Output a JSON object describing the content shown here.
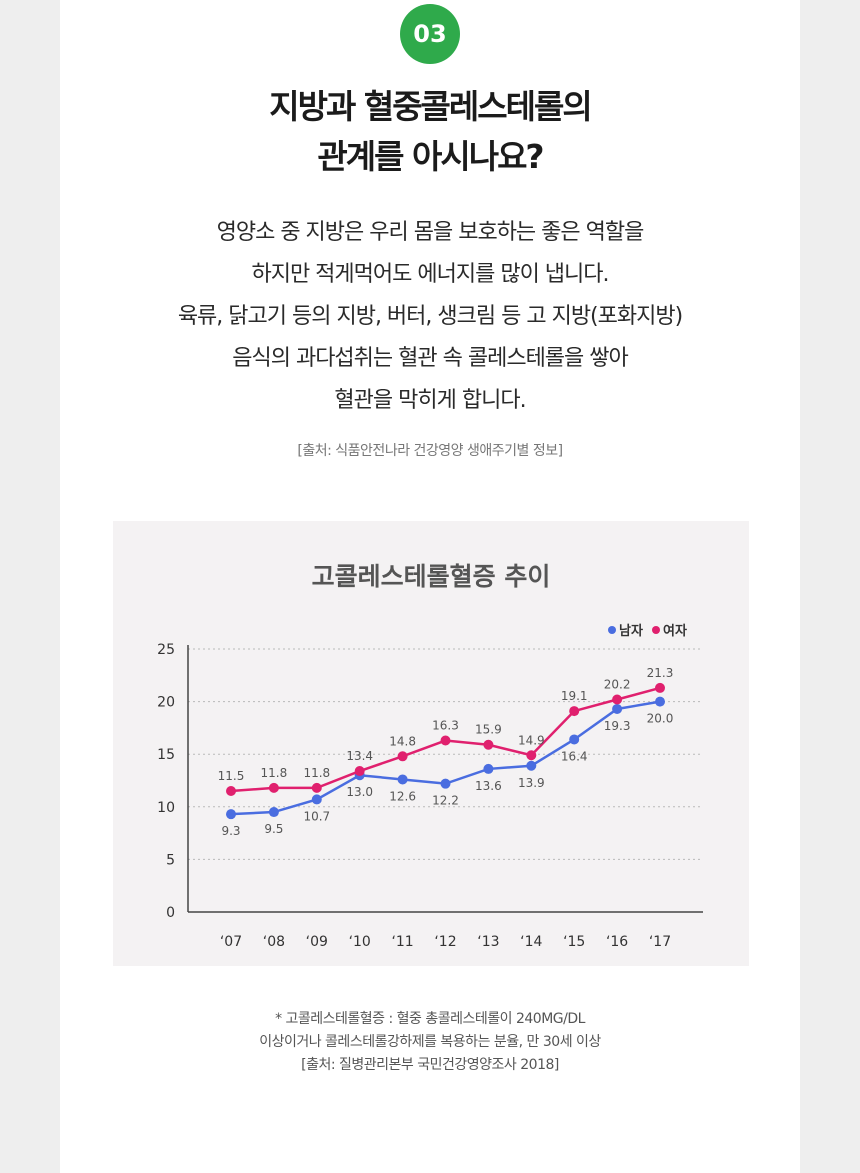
{
  "badge": "03",
  "headline": [
    "지방과 혈중콜레스테롤의",
    "관계를 아시나요?"
  ],
  "body_lines": [
    "영양소 중 지방은 우리 몸을 보호하는 좋은 역할을",
    "하지만 적게먹어도 에너지를 많이 냅니다.",
    "육류, 닭고기 등의 지방, 버터, 생크림 등 고 지방(포화지방)",
    "음식의 과다섭취는 혈관 속 콜레스테롤을 쌓아",
    "혈관을 막히게 합니다."
  ],
  "source_top": "[출처: 식품안전나라 건강영양 생애주기별 정보]",
  "chart_data": {
    "type": "line",
    "title": "고콜레스테롤혈증 추이",
    "categories": [
      "‘07",
      "‘08",
      "‘09",
      "‘10",
      "‘11",
      "‘12",
      "‘13",
      "‘14",
      "‘15",
      "‘16",
      "‘17"
    ],
    "yticks": [
      0,
      5,
      10,
      15,
      20,
      25
    ],
    "ylim": [
      0,
      25
    ],
    "grid": true,
    "legend_position": "top-right",
    "series": [
      {
        "name": "남자",
        "color": "#4a6de0",
        "values": [
          9.3,
          9.5,
          10.7,
          13.0,
          12.6,
          12.2,
          13.6,
          13.9,
          16.4,
          19.3,
          20.0
        ],
        "labels": [
          "9.3",
          "9.5",
          "10.7",
          "13.0",
          "12.6",
          "12.2",
          "13.6",
          "13.9",
          "16.4",
          "19.3",
          "20.0"
        ]
      },
      {
        "name": "여자",
        "color": "#e0206e",
        "values": [
          11.5,
          11.8,
          11.8,
          13.4,
          14.8,
          16.3,
          15.9,
          14.9,
          19.1,
          20.2,
          21.3
        ],
        "labels": [
          "11.5",
          "11.8",
          "11.8",
          "13.4",
          "14.8",
          "16.3",
          "15.9",
          "14.9",
          "19.1",
          "20.2",
          "21.3"
        ]
      }
    ]
  },
  "footnote": [
    "* 고콜레스테롤혈증 : 혈중 총콜레스테롤이 240MG/DL",
    "이상이거나 콜레스테롤강하제를 복용하는 분율, 만 30세 이상",
    "[출처: 질병관리본부 국민건강영양조사 2018]"
  ]
}
